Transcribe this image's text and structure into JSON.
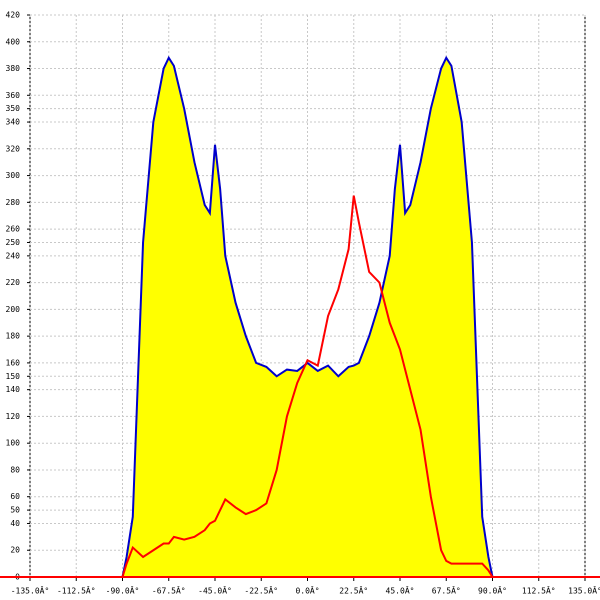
{
  "chart_data": {
    "type": "line",
    "x": [
      -90,
      -88,
      -85,
      -80,
      -75,
      -70,
      -67.5,
      -65,
      -60,
      -55,
      -50,
      -47.5,
      -45,
      -42.5,
      -40,
      -35,
      -30,
      -25,
      -20,
      -15,
      -10,
      -5,
      0,
      5,
      10,
      15,
      20,
      22.5,
      25,
      30,
      35,
      40,
      42.5,
      45,
      47.5,
      50,
      55,
      60,
      65,
      67.5,
      70,
      75,
      80,
      85,
      88,
      90
    ],
    "series": [
      {
        "color": "#0000cc",
        "fill": "#ffff00",
        "values": [
          0,
          15,
          45,
          250,
          340,
          380,
          388,
          382,
          350,
          310,
          278,
          272,
          323,
          290,
          240,
          205,
          180,
          160,
          157,
          150,
          155,
          154,
          160,
          154,
          158,
          150,
          157,
          158,
          160,
          180,
          205,
          240,
          290,
          323,
          272,
          278,
          310,
          350,
          380,
          388,
          382,
          340,
          250,
          45,
          15,
          0
        ]
      },
      {
        "color": "#ff0000",
        "values": [
          0,
          10,
          22,
          15,
          20,
          25,
          25,
          30,
          28,
          30,
          35,
          40,
          42,
          50,
          58,
          52,
          47,
          50,
          55,
          80,
          120,
          145,
          162,
          158,
          195,
          215,
          245,
          285,
          265,
          228,
          220,
          190,
          180,
          170,
          155,
          140,
          110,
          60,
          20,
          12,
          10,
          10,
          10,
          10,
          5,
          0
        ]
      }
    ],
    "xlim": [
      -135,
      135
    ],
    "xticks": [
      {
        "value": -135,
        "label": "-135.0Â°"
      },
      {
        "value": -112.5,
        "label": "-112.5Â°"
      },
      {
        "value": -90,
        "label": "-90.0Â°"
      },
      {
        "value": -67.5,
        "label": "-67.5Â°"
      },
      {
        "value": -45,
        "label": "-45.0Â°"
      },
      {
        "value": -22.5,
        "label": "-22.5Â°"
      },
      {
        "value": 0,
        "label": "0.0Â°"
      },
      {
        "value": 22.5,
        "label": "22.5Â°"
      },
      {
        "value": 45,
        "label": "45.0Â°"
      },
      {
        "value": 67.5,
        "label": "67.5Â°"
      },
      {
        "value": 90,
        "label": "90.0Â°"
      },
      {
        "value": 112.5,
        "label": "112.5Â°"
      },
      {
        "value": 135,
        "label": "135.0Â°"
      }
    ],
    "ylim": [
      0,
      420
    ],
    "yticks": [
      0,
      20,
      40,
      50,
      60,
      80,
      100,
      120,
      140,
      150,
      160,
      180,
      200,
      220,
      240,
      250,
      260,
      280,
      300,
      320,
      340,
      350,
      360,
      380,
      400,
      420
    ],
    "grid": true
  }
}
